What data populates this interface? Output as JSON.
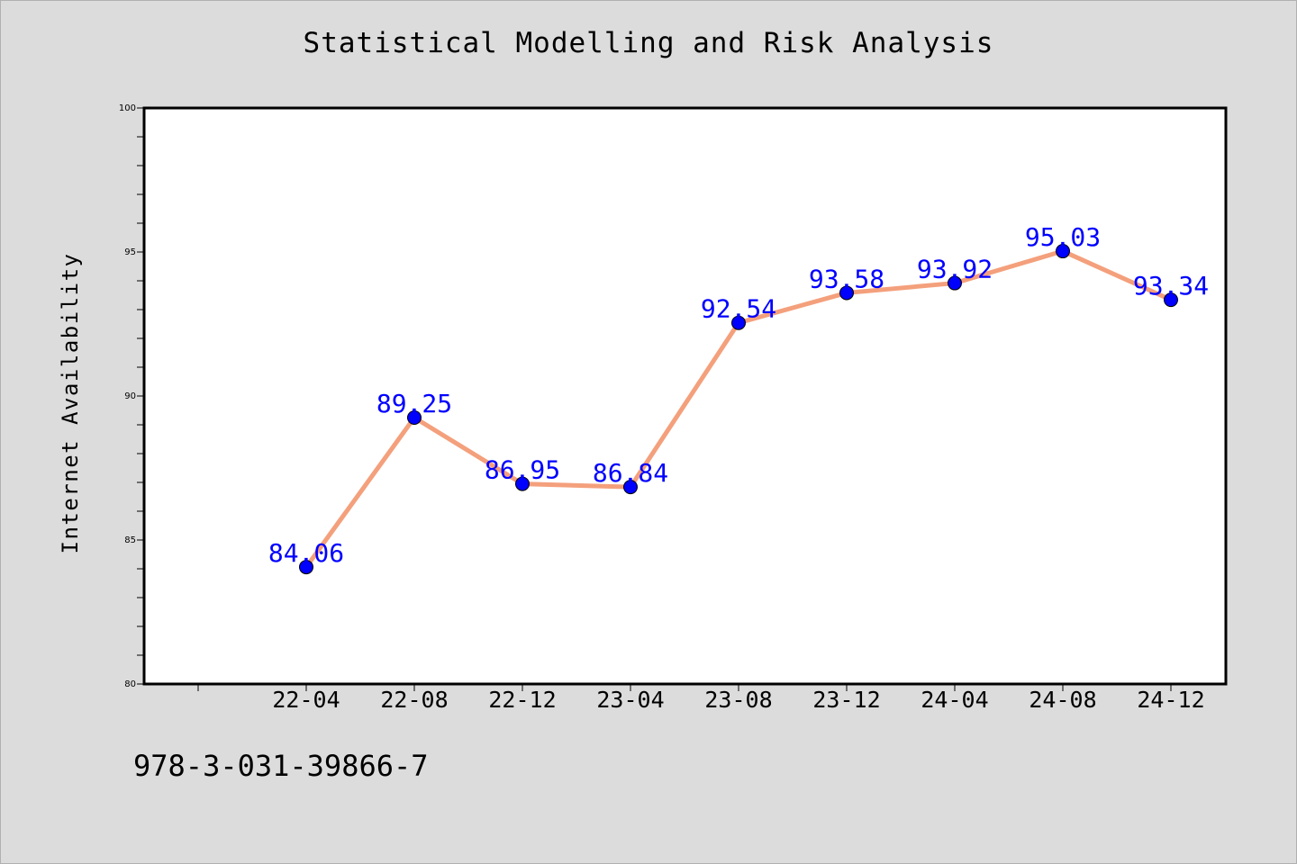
{
  "chart_data": {
    "type": "line",
    "title": "Statistical Modelling and Risk Analysis",
    "ylabel": "Internet Availability",
    "xlabel": "",
    "categories": [
      "22-04",
      "22-08",
      "22-12",
      "23-04",
      "23-08",
      "23-12",
      "24-04",
      "24-08",
      "24-12"
    ],
    "values": [
      84.06,
      89.25,
      86.95,
      86.84,
      92.54,
      93.58,
      93.92,
      95.03,
      93.34
    ],
    "data_labels": [
      "84.06",
      "89.25",
      "86.95",
      "86.84",
      "92.54",
      "93.58",
      "93.92",
      "95.03",
      "93.34"
    ],
    "ylim": [
      80,
      100
    ],
    "y_ticks": [
      "80",
      "85",
      "90",
      "95",
      "100"
    ],
    "grid": false,
    "line_color": "#f4a07c",
    "marker_color": "#0000ff",
    "label_color": "#0000ff",
    "background_color": "#dcdcdc",
    "plot_background": "#ffffff"
  },
  "footer_text": "978-3-031-39866-7"
}
